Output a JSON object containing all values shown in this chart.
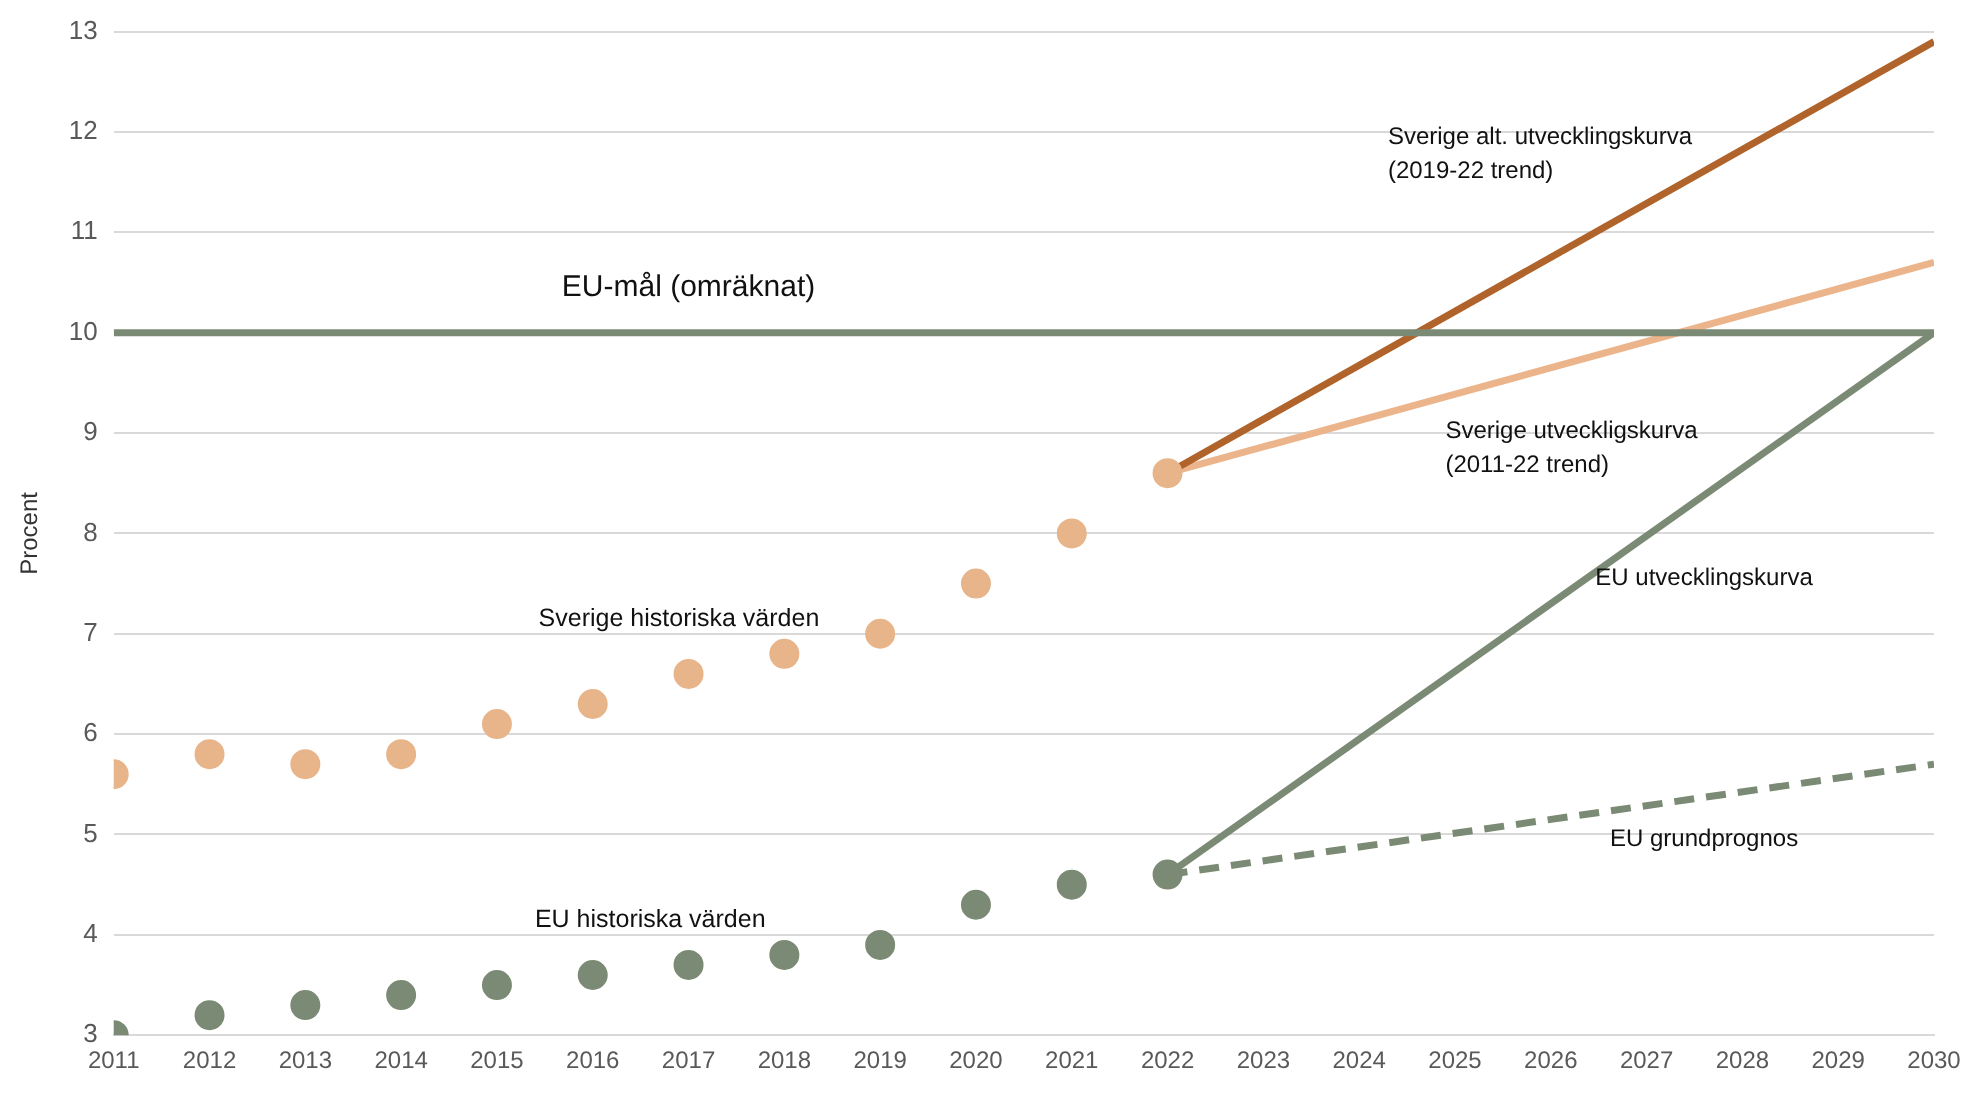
{
  "chart_data": {
    "type": "line",
    "ylabel": "Procent",
    "xlim": [
      2011,
      2030
    ],
    "xticks": [
      2011,
      2012,
      2013,
      2014,
      2015,
      2016,
      2017,
      2018,
      2019,
      2020,
      2021,
      2022,
      2023,
      2024,
      2025,
      2026,
      2027,
      2028,
      2029,
      2030
    ],
    "ylim": [
      3,
      13
    ],
    "yticks": [
      3,
      4,
      5,
      6,
      7,
      8,
      9,
      10,
      11,
      12,
      13
    ],
    "grid": "y",
    "legend": false,
    "series": [
      {
        "type": "scatter",
        "name": "Sverige historiska värden",
        "marker": "circle",
        "color": "#e8b48a",
        "x": [
          2011,
          2012,
          2013,
          2014,
          2015,
          2016,
          2017,
          2018,
          2019,
          2020,
          2021,
          2022
        ],
        "values": [
          5.6,
          5.8,
          5.7,
          5.8,
          6.1,
          6.3,
          6.6,
          6.8,
          7.0,
          7.5,
          8.0,
          8.6
        ]
      },
      {
        "type": "scatter",
        "name": "EU historiska värden",
        "marker": "circle",
        "color": "#7b8a74",
        "x": [
          2011,
          2012,
          2013,
          2014,
          2015,
          2016,
          2017,
          2018,
          2019,
          2020,
          2021,
          2022
        ],
        "values": [
          3.0,
          3.2,
          3.3,
          3.4,
          3.5,
          3.6,
          3.7,
          3.8,
          3.9,
          4.3,
          4.5,
          4.6
        ]
      },
      {
        "type": "line",
        "name": "EU-mål (omräknat)",
        "line_style": "solid",
        "color": "#7b8a74",
        "x": [
          2011,
          2030
        ],
        "values": [
          10,
          10
        ]
      },
      {
        "type": "line",
        "name": "Sverige alt. utvecklingskurva\n(2019-22 trend)",
        "line_style": "solid",
        "color": "#b0632a",
        "x": [
          2022,
          2030
        ],
        "values": [
          8.6,
          12.9
        ]
      },
      {
        "type": "line",
        "name": "Sverige utveckligskurva\n(2011-22 trend)",
        "line_style": "solid",
        "color": "#ebb48a",
        "x": [
          2022,
          2030
        ],
        "values": [
          8.6,
          10.7
        ]
      },
      {
        "type": "line",
        "name": "EU utvecklingskurva",
        "line_style": "solid",
        "color": "#7b8a74",
        "x": [
          2022,
          2030
        ],
        "values": [
          4.6,
          10.0
        ]
      },
      {
        "type": "line",
        "name": "EU grundprognos",
        "line_style": "dashed",
        "color": "#7b8a74",
        "x": [
          2022,
          2030
        ],
        "values": [
          4.6,
          5.7
        ]
      }
    ]
  }
}
